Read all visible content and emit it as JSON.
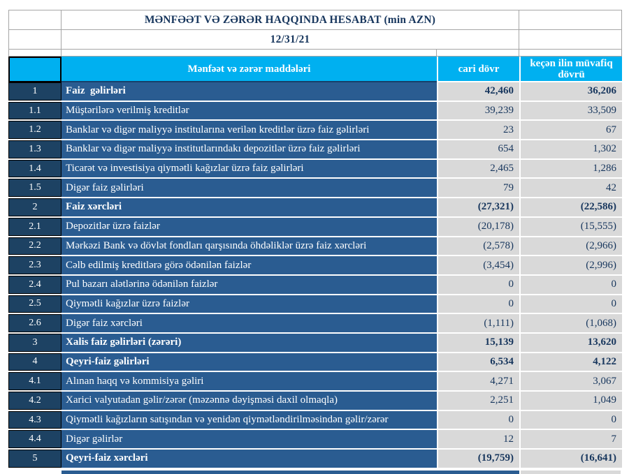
{
  "report": {
    "title": "MƏNFƏƏT VƏ ZƏRƏR HAQQINDA HESABAT (min AZN)",
    "date": "12/31/21"
  },
  "table": {
    "columns": {
      "items_header": "Mənfəət və zərər maddələri",
      "current_header": "cari dövr",
      "previous_header": "keçən ilin müvafiq dövrü"
    },
    "rows": [
      {
        "num": "1",
        "label": "Faiz  gəlirləri",
        "current": "42,460",
        "previous": "36,206",
        "bold": true
      },
      {
        "num": "1.1",
        "label": "Müştərilərə verilmiş kreditlər",
        "current": "39,239",
        "previous": "33,509",
        "bold": false
      },
      {
        "num": "1.2",
        "label": "Banklar və digər maliyyə institularına verilən kreditlər üzrə faiz gəlirləri",
        "current": "23",
        "previous": "67",
        "bold": false
      },
      {
        "num": "1.3",
        "label": "Banklar və digər maliyyə institutlarındakı depozitlər üzrə faiz gəlirləri",
        "current": "654",
        "previous": "1,302",
        "bold": false
      },
      {
        "num": "1.4",
        "label": "Ticarət və investisiya qiymətli kağızlar üzrə faiz gəlirləri",
        "current": "2,465",
        "previous": "1,286",
        "bold": false
      },
      {
        "num": "1.5",
        "label": "Digər faiz gəlirləri",
        "current": "79",
        "previous": "42",
        "bold": false
      },
      {
        "num": "2",
        "label": "Faiz xərcləri",
        "current": "(27,321)",
        "previous": "(22,586)",
        "bold": true
      },
      {
        "num": "2.1",
        "label": "Depozitlər üzrə faizlər",
        "current": "(20,178)",
        "previous": "(15,555)",
        "bold": false
      },
      {
        "num": "2.2",
        "label": "Mərkəzi Bank və dövlət fondları qarşısında öhdəliklər üzrə faiz xərcləri",
        "current": "(2,578)",
        "previous": "(2,966)",
        "bold": false
      },
      {
        "num": "2.3",
        "label": "Cəlb edilmiş kreditlərə görə ödənilən faizlər",
        "current": "(3,454)",
        "previous": "(2,996)",
        "bold": false
      },
      {
        "num": "2.4",
        "label": "Pul bazarı alətlərinə ödənilən faizlər",
        "current": "0",
        "previous": "0",
        "bold": false
      },
      {
        "num": "2.5",
        "label": "Qiymətli kağızlar üzrə faizlər",
        "current": "0",
        "previous": "0",
        "bold": false
      },
      {
        "num": "2.6",
        "label": "Digər faiz xərcləri",
        "current": "(1,111)",
        "previous": "(1,068)",
        "bold": false
      },
      {
        "num": "3",
        "label": "Xalis faiz gəlirləri (zərəri)",
        "current": "15,139",
        "previous": "13,620",
        "bold": true
      },
      {
        "num": "4",
        "label": "Qeyri-faiz gəlirləri",
        "current": "6,534",
        "previous": "4,122",
        "bold": true
      },
      {
        "num": "4.1",
        "label": "Alınan haqq və kommisiya gəliri",
        "current": "4,271",
        "previous": "3,067",
        "bold": false
      },
      {
        "num": "4.2",
        "label": "Xarici valyutadan gəlir/zərər (məzənnə dəyişməsi daxil olmaqla)",
        "current": "2,251",
        "previous": "1,049",
        "bold": false
      },
      {
        "num": "4.3",
        "label": "Qiymətli kağızların satışından və yenidən qiymətləndirilməsindən gəlir/zərər",
        "current": "0",
        "previous": "0",
        "bold": false
      },
      {
        "num": "4.4",
        "label": "Digər gəlirlər",
        "current": "12",
        "previous": "7",
        "bold": false
      },
      {
        "num": "5",
        "label": "Qeyri-faiz xərcləri",
        "current": "(19,759)",
        "previous": "(16,641)",
        "bold": true
      }
    ]
  },
  "colors": {
    "header_cyan": "#00B0F0",
    "row_blue": "#2A5C91",
    "number_blue": "#1D4263",
    "value_gray": "#D9D9D9",
    "text_navy": "#17365D"
  }
}
